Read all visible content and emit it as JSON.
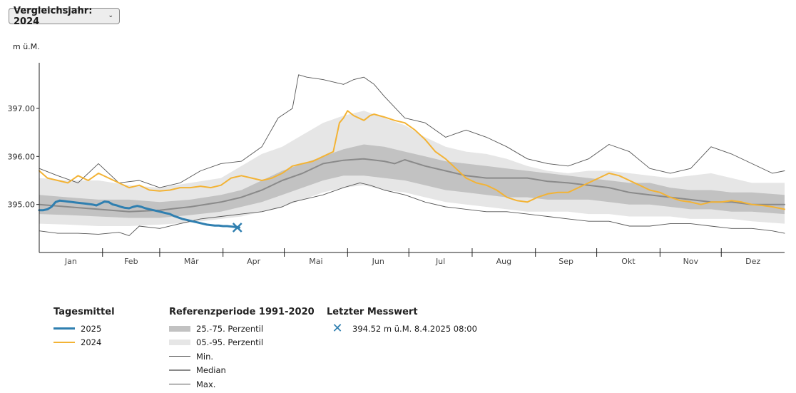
{
  "selector": {
    "label": "Vergleichsjahr: 2024",
    "caret": "⌄"
  },
  "unit_label": "m ü.M.",
  "legend": {
    "daily": {
      "title": "Tagesmittel",
      "items": [
        {
          "label": "2025",
          "color": "#2f7fb0"
        },
        {
          "label": "2024",
          "color": "#f3b335"
        }
      ]
    },
    "reference": {
      "title": "Referenzperiode 1991-2020",
      "items": [
        {
          "label": "25.-75. Perzentil",
          "color": "#c2c2c2"
        },
        {
          "label": "05.-95. Perzentil",
          "color": "#e6e6e6"
        },
        {
          "label": "Min.",
          "color": "#555555"
        },
        {
          "label": "Median",
          "color": "#8a8a8a"
        },
        {
          "label": "Max.",
          "color": "#555555"
        }
      ]
    },
    "latest": {
      "title": "Letzter Messwert",
      "value": "394.52 m ü.M.  8.4.2025 08:00",
      "icon": "x-marker-icon"
    }
  },
  "chart_data": {
    "type": "line",
    "x_unit": "day of year",
    "xlim": [
      1,
      366
    ],
    "ylim": [
      394.0,
      397.95
    ],
    "yticks": [
      395.0,
      396.0,
      397.0
    ],
    "ytick_labels": [
      "395.00",
      "396.00",
      "397.00"
    ],
    "month_labels": [
      "Jan",
      "Feb",
      "Mär",
      "Apr",
      "Mai",
      "Jun",
      "Jul",
      "Aug",
      "Sep",
      "Okt",
      "Nov",
      "Dez"
    ],
    "month_starts": [
      1,
      32,
      60,
      91,
      121,
      152,
      182,
      213,
      244,
      274,
      305,
      335,
      366
    ],
    "series": [
      {
        "name": "Max.",
        "x": [
          1,
          10,
          20,
          30,
          40,
          50,
          60,
          70,
          80,
          90,
          100,
          110,
          118,
          125,
          128,
          132,
          140,
          150,
          155,
          160,
          165,
          170,
          180,
          190,
          200,
          210,
          220,
          230,
          240,
          250,
          260,
          270,
          280,
          290,
          300,
          310,
          320,
          330,
          340,
          350,
          360,
          366
        ],
        "values": [
          395.75,
          395.6,
          395.45,
          395.85,
          395.45,
          395.5,
          395.35,
          395.45,
          395.7,
          395.85,
          395.9,
          396.2,
          396.8,
          397.0,
          397.7,
          397.65,
          397.6,
          397.5,
          397.6,
          397.65,
          397.5,
          397.25,
          396.8,
          396.7,
          396.4,
          396.55,
          396.4,
          396.2,
          395.95,
          395.85,
          395.8,
          395.95,
          396.25,
          396.1,
          395.75,
          395.65,
          395.75,
          396.2,
          396.05,
          395.85,
          395.65,
          395.7
        ]
      },
      {
        "name": "95. Perzentil",
        "x": [
          1,
          15,
          30,
          45,
          60,
          75,
          90,
          100,
          110,
          120,
          130,
          140,
          150,
          160,
          170,
          180,
          190,
          200,
          210,
          220,
          230,
          240,
          250,
          260,
          270,
          280,
          290,
          300,
          310,
          320,
          330,
          340,
          350,
          366
        ],
        "values": [
          395.55,
          395.5,
          395.5,
          395.4,
          395.35,
          395.45,
          395.55,
          395.8,
          396.05,
          396.2,
          396.45,
          396.7,
          396.85,
          396.95,
          396.8,
          396.65,
          396.4,
          396.2,
          396.1,
          396.05,
          395.95,
          395.8,
          395.7,
          395.65,
          395.7,
          395.7,
          395.65,
          395.6,
          395.55,
          395.6,
          395.65,
          395.55,
          395.45,
          395.45
        ]
      },
      {
        "name": "75. Perzentil",
        "x": [
          1,
          15,
          30,
          45,
          60,
          75,
          90,
          100,
          110,
          120,
          130,
          140,
          150,
          160,
          170,
          180,
          190,
          200,
          210,
          220,
          230,
          240,
          250,
          260,
          270,
          280,
          290,
          300,
          310,
          320,
          330,
          340,
          350,
          366
        ],
        "values": [
          395.2,
          395.15,
          395.1,
          395.1,
          395.05,
          395.1,
          395.2,
          395.3,
          395.5,
          395.7,
          395.85,
          396.0,
          396.15,
          396.25,
          396.2,
          396.1,
          396.0,
          395.9,
          395.85,
          395.8,
          395.75,
          395.7,
          395.65,
          395.6,
          395.55,
          395.5,
          395.45,
          395.45,
          395.35,
          395.3,
          395.3,
          395.25,
          395.25,
          395.2
        ]
      },
      {
        "name": "Median",
        "x": [
          1,
          15,
          30,
          45,
          60,
          75,
          90,
          100,
          110,
          120,
          130,
          140,
          150,
          160,
          170,
          175,
          180,
          190,
          200,
          210,
          220,
          230,
          240,
          250,
          260,
          270,
          280,
          290,
          300,
          310,
          320,
          330,
          340,
          350,
          366
        ],
        "values": [
          395.0,
          394.95,
          394.9,
          394.85,
          394.88,
          394.95,
          395.05,
          395.15,
          395.3,
          395.5,
          395.65,
          395.85,
          395.92,
          395.95,
          395.9,
          395.85,
          395.93,
          395.8,
          395.7,
          395.6,
          395.55,
          395.55,
          395.55,
          395.48,
          395.45,
          395.4,
          395.35,
          395.25,
          395.2,
          395.15,
          395.1,
          395.05,
          395.05,
          395.0,
          395.0
        ]
      },
      {
        "name": "25. Perzentil",
        "x": [
          1,
          15,
          30,
          45,
          60,
          75,
          90,
          100,
          110,
          120,
          130,
          140,
          150,
          160,
          170,
          180,
          190,
          200,
          210,
          220,
          230,
          240,
          250,
          260,
          270,
          280,
          290,
          300,
          310,
          320,
          330,
          340,
          350,
          366
        ],
        "values": [
          394.8,
          394.78,
          394.75,
          394.72,
          394.72,
          394.78,
          394.85,
          394.95,
          395.05,
          395.2,
          395.35,
          395.5,
          395.6,
          395.6,
          395.55,
          395.5,
          395.4,
          395.3,
          395.25,
          395.2,
          395.15,
          395.15,
          395.1,
          395.1,
          395.1,
          395.05,
          395.0,
          395.0,
          394.95,
          394.9,
          394.9,
          394.85,
          394.85,
          394.8
        ]
      },
      {
        "name": "05. Perzentil",
        "x": [
          1,
          15,
          30,
          45,
          60,
          75,
          90,
          100,
          110,
          120,
          130,
          140,
          150,
          160,
          170,
          180,
          190,
          200,
          210,
          220,
          230,
          240,
          250,
          260,
          270,
          280,
          290,
          300,
          310,
          320,
          330,
          340,
          350,
          366
        ],
        "values": [
          394.6,
          394.58,
          394.55,
          394.55,
          394.58,
          394.62,
          394.7,
          394.75,
          394.85,
          394.95,
          395.1,
          395.25,
          395.35,
          395.4,
          395.3,
          395.25,
          395.15,
          395.05,
          395.0,
          394.95,
          394.9,
          394.85,
          394.85,
          394.85,
          394.8,
          394.8,
          394.75,
          394.75,
          394.75,
          394.7,
          394.7,
          394.7,
          394.65,
          394.6
        ]
      },
      {
        "name": "Min.",
        "x": [
          1,
          10,
          20,
          30,
          40,
          45,
          50,
          60,
          70,
          80,
          90,
          100,
          110,
          120,
          125,
          130,
          140,
          150,
          158,
          163,
          170,
          180,
          190,
          200,
          210,
          220,
          230,
          240,
          250,
          260,
          270,
          280,
          290,
          300,
          310,
          320,
          330,
          340,
          350,
          360,
          366
        ],
        "values": [
          394.45,
          394.4,
          394.4,
          394.38,
          394.42,
          394.35,
          394.55,
          394.5,
          394.6,
          394.7,
          394.75,
          394.8,
          394.85,
          394.95,
          395.05,
          395.1,
          395.2,
          395.35,
          395.45,
          395.4,
          395.3,
          395.2,
          395.05,
          394.95,
          394.9,
          394.85,
          394.85,
          394.8,
          394.75,
          394.7,
          394.65,
          394.65,
          394.55,
          394.55,
          394.6,
          394.6,
          394.55,
          394.5,
          394.5,
          394.45,
          394.4
        ]
      },
      {
        "name": "2024",
        "x": [
          1,
          5,
          10,
          15,
          20,
          25,
          30,
          35,
          40,
          45,
          50,
          55,
          60,
          65,
          70,
          75,
          80,
          85,
          90,
          95,
          100,
          105,
          110,
          115,
          120,
          125,
          130,
          135,
          140,
          145,
          148,
          150,
          152,
          155,
          160,
          163,
          165,
          170,
          175,
          180,
          185,
          190,
          195,
          200,
          205,
          210,
          215,
          220,
          225,
          230,
          235,
          240,
          245,
          250,
          255,
          260,
          265,
          270,
          275,
          280,
          285,
          290,
          295,
          300,
          305,
          310,
          315,
          320,
          325,
          330,
          335,
          340,
          345,
          350,
          355,
          360,
          366
        ],
        "values": [
          395.7,
          395.55,
          395.5,
          395.45,
          395.6,
          395.5,
          395.65,
          395.55,
          395.45,
          395.35,
          395.4,
          395.3,
          395.28,
          395.3,
          395.35,
          395.35,
          395.38,
          395.35,
          395.4,
          395.55,
          395.6,
          395.55,
          395.5,
          395.55,
          395.65,
          395.8,
          395.85,
          395.9,
          396.0,
          396.1,
          396.7,
          396.8,
          396.95,
          396.85,
          396.75,
          396.85,
          396.88,
          396.82,
          396.75,
          396.7,
          396.55,
          396.35,
          396.1,
          395.95,
          395.75,
          395.55,
          395.45,
          395.4,
          395.3,
          395.15,
          395.08,
          395.05,
          395.15,
          395.22,
          395.25,
          395.25,
          395.35,
          395.45,
          395.55,
          395.65,
          395.6,
          395.5,
          395.4,
          395.3,
          395.25,
          395.15,
          395.08,
          395.05,
          395.0,
          395.05,
          395.05,
          395.08,
          395.05,
          395.0,
          394.98,
          394.95,
          394.9
        ]
      },
      {
        "name": "2025",
        "x": [
          1,
          3,
          5,
          7,
          9,
          11,
          13,
          15,
          17,
          19,
          21,
          23,
          25,
          27,
          29,
          31,
          33,
          35,
          37,
          39,
          41,
          43,
          45,
          47,
          49,
          51,
          53,
          55,
          57,
          59,
          61,
          63,
          65,
          67,
          69,
          71,
          73,
          75,
          77,
          79,
          81,
          83,
          85,
          87,
          89,
          91,
          93,
          95,
          97,
          99
        ],
        "values": [
          394.88,
          394.88,
          394.9,
          394.95,
          395.05,
          395.08,
          395.07,
          395.06,
          395.05,
          395.04,
          395.03,
          395.02,
          395.01,
          395.0,
          394.98,
          395.02,
          395.06,
          395.05,
          395.0,
          394.98,
          394.95,
          394.93,
          394.92,
          394.95,
          394.97,
          394.95,
          394.92,
          394.9,
          394.88,
          394.86,
          394.84,
          394.82,
          394.8,
          394.76,
          394.73,
          394.7,
          394.68,
          394.66,
          394.64,
          394.62,
          394.6,
          394.58,
          394.57,
          394.56,
          394.56,
          394.55,
          394.55,
          394.54,
          394.53,
          394.52
        ]
      }
    ],
    "latest": {
      "day": 98,
      "value": 394.52
    }
  }
}
